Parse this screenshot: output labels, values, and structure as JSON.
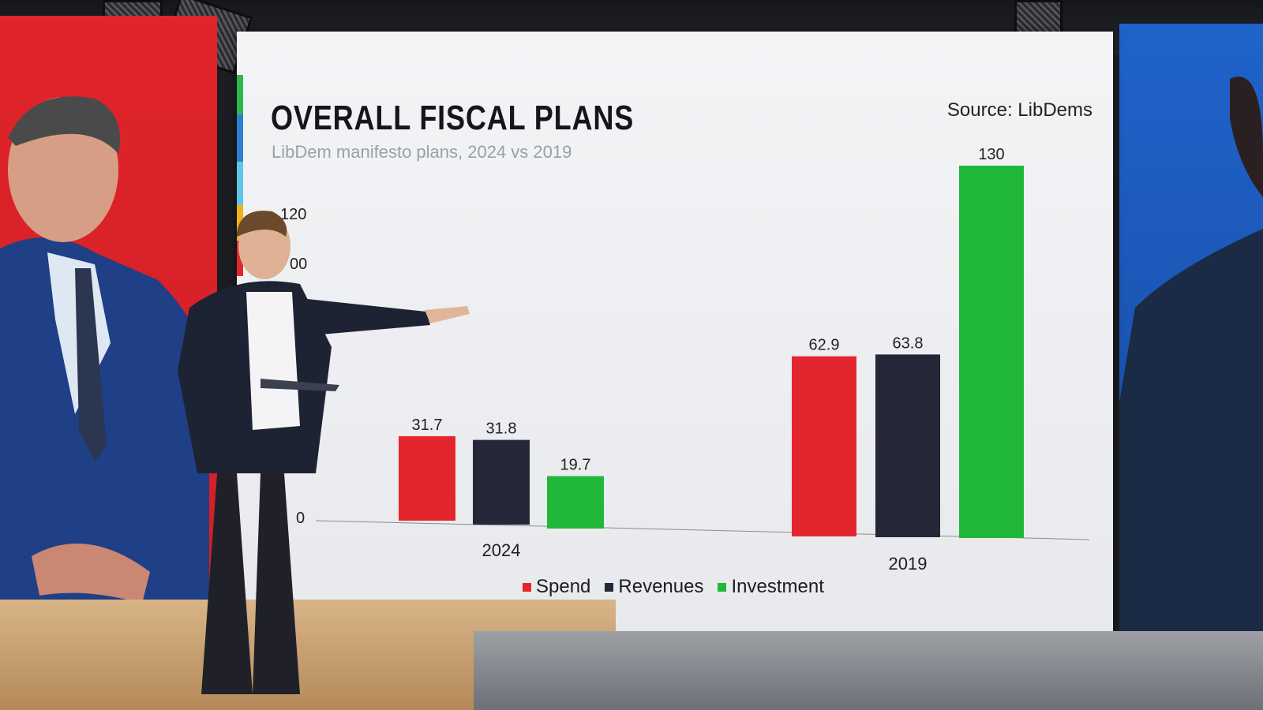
{
  "chart_data": {
    "type": "bar",
    "title": "OVERALL FISCAL PLANS",
    "subtitle": "LibDem manifesto plans, 2024 vs 2019",
    "source": "Source: LibDems",
    "categories": [
      "2024",
      "2019"
    ],
    "series": [
      {
        "name": "Spend",
        "color": "#e3262d",
        "values": [
          31.7,
          62.9
        ]
      },
      {
        "name": "Revenues",
        "color": "#252637",
        "values": [
          31.8,
          63.8
        ]
      },
      {
        "name": "Investment",
        "color": "#21b83a",
        "values": [
          19.7,
          130
        ]
      }
    ],
    "y_ticks": [
      "120",
      "00",
      "0"
    ],
    "ylim": [
      0,
      140
    ],
    "grid": false,
    "legend_position": "bottom"
  },
  "scene": {
    "left_panel_color": "#e0242b",
    "right_panel_color": "#1f63c9"
  }
}
